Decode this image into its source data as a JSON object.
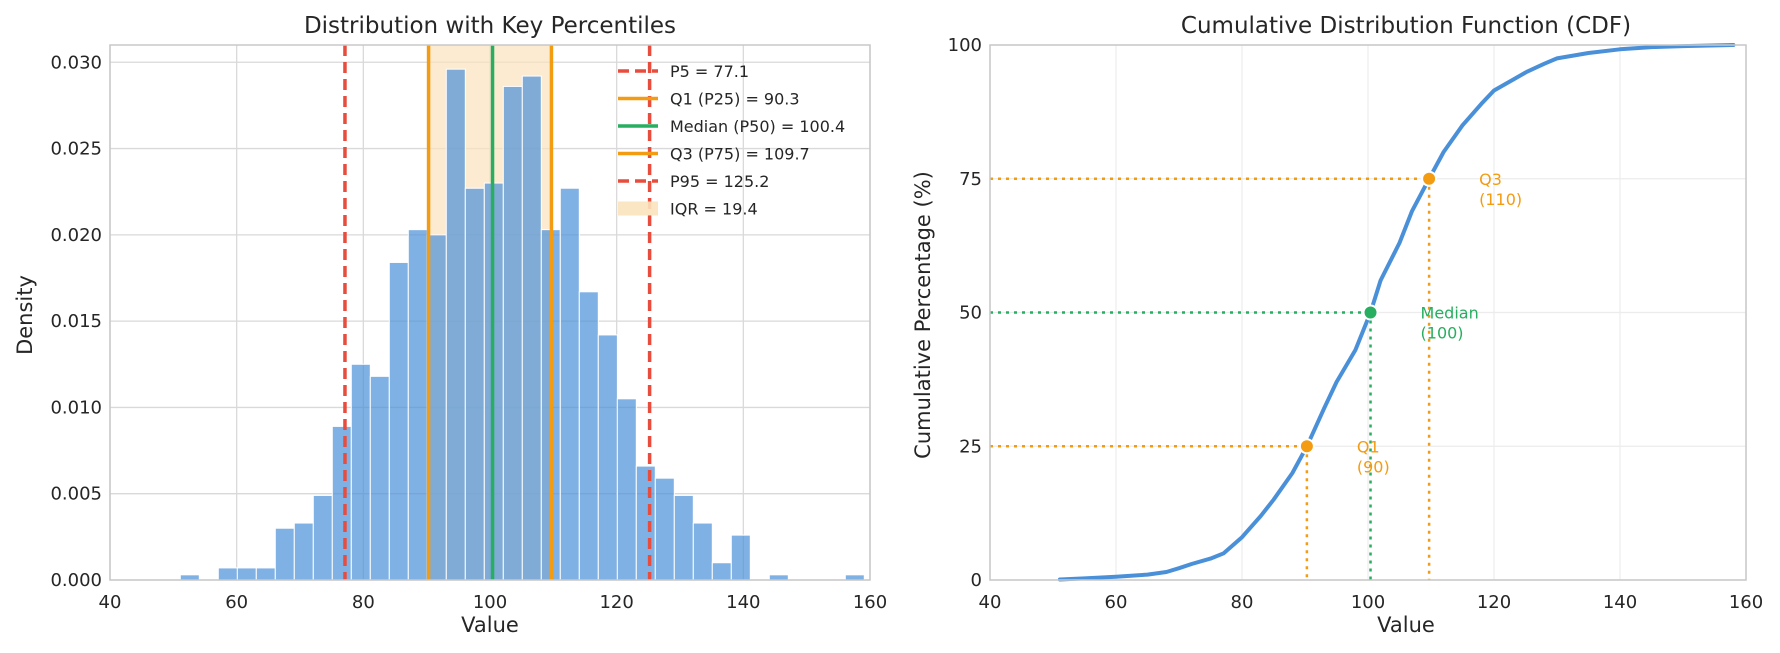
{
  "colors": {
    "histogram": "#4a90d9",
    "red": "#e74c3c",
    "orange": "#f39c12",
    "green": "#27ae60",
    "iqr_fill": "#fbe3bd",
    "cdf_line": "#4a90d9",
    "grid": "#d9d9d9",
    "axes": "#c8c8c8",
    "text": "#262626"
  },
  "chart_data": [
    {
      "type": "bar",
      "title": "Distribution with Key Percentiles",
      "xlabel": "Value",
      "ylabel": "Density",
      "xlim": [
        40,
        160
      ],
      "ylim": [
        0,
        0.031
      ],
      "xticks": [
        40,
        60,
        80,
        100,
        120,
        140,
        160
      ],
      "xtick_labels": [
        "40",
        "60",
        "80",
        "100",
        "120",
        "140",
        "160"
      ],
      "yticks": [
        0,
        0.005,
        0.01,
        0.015,
        0.02,
        0.025,
        0.03
      ],
      "ytick_labels": [
        "0.000",
        "0.005",
        "0.010",
        "0.015",
        "0.020",
        "0.025",
        "0.030"
      ],
      "grid": true,
      "legend_position": "top-right",
      "bin_edges": [
        51.1,
        54.1,
        57.1,
        60.1,
        63.1,
        66.1,
        69.1,
        72.1,
        75.1,
        78.1,
        81.1,
        84.1,
        87.1,
        90.1,
        93.1,
        96.1,
        99.1,
        102.1,
        105.1,
        108.1,
        111.1,
        114.1,
        117.1,
        120.1,
        123.1,
        126.1,
        129.1,
        132.1,
        135.1,
        138.1,
        141.1,
        144.1,
        147.1,
        150.1,
        153.1,
        156.1,
        159.1
      ],
      "densities": [
        0.0003,
        0,
        0.0007,
        0.0007,
        0.0007,
        0.003,
        0.0033,
        0.0049,
        0.0089,
        0.0125,
        0.0118,
        0.0184,
        0.0203,
        0.02,
        0.0296,
        0.0227,
        0.023,
        0.0286,
        0.0292,
        0.0203,
        0.0227,
        0.0167,
        0.0142,
        0.0105,
        0.0066,
        0.0059,
        0.0049,
        0.0033,
        0.001,
        0.0026,
        0,
        0.0003,
        0,
        0,
        0,
        0.0003
      ],
      "percentiles": [
        {
          "label": "P5 = 77.1",
          "value": 77.1,
          "color": "#e74c3c",
          "style": "dashed"
        },
        {
          "label": "Q1 (P25) = 90.3",
          "value": 90.3,
          "color": "#f39c12",
          "style": "solid"
        },
        {
          "label": "Median (P50) = 100.4",
          "value": 100.4,
          "color": "#27ae60",
          "style": "solid"
        },
        {
          "label": "Q3 (P75) = 109.7",
          "value": 109.7,
          "color": "#f39c12",
          "style": "solid"
        },
        {
          "label": "P95 = 125.2",
          "value": 125.2,
          "color": "#e74c3c",
          "style": "dashed"
        }
      ],
      "iqr": {
        "label": "IQR = 19.4",
        "from": 90.3,
        "to": 109.7
      }
    },
    {
      "type": "line",
      "title": "Cumulative Distribution Function (CDF)",
      "xlabel": "Value",
      "ylabel": "Cumulative Percentage (%)",
      "xlim": [
        40,
        160
      ],
      "ylim": [
        0,
        100
      ],
      "xticks": [
        40,
        60,
        80,
        100,
        120,
        140,
        160
      ],
      "xtick_labels": [
        "40",
        "60",
        "80",
        "100",
        "120",
        "140",
        "160"
      ],
      "yticks": [
        0,
        25,
        50,
        75,
        100
      ],
      "ytick_labels": [
        "0",
        "25",
        "50",
        "75",
        "100"
      ],
      "grid": true,
      "x": [
        51.1,
        55,
        60,
        65,
        68,
        70,
        72,
        75,
        77.1,
        80,
        83,
        85,
        88,
        90.3,
        93,
        95,
        98,
        100.4,
        102,
        105,
        107,
        109.7,
        112,
        115,
        118,
        120,
        123,
        125.2,
        128,
        130,
        135,
        140,
        145,
        150,
        158
      ],
      "y": [
        0.1,
        0.3,
        0.6,
        1,
        1.5,
        2.2,
        3,
        4,
        5,
        8,
        12,
        15,
        20,
        25,
        32,
        37,
        43,
        50,
        56,
        63,
        69,
        75,
        80,
        85,
        89,
        91.5,
        93.5,
        95,
        96.5,
        97.5,
        98.5,
        99.2,
        99.6,
        99.8,
        100
      ],
      "points": [
        {
          "name": "Q1",
          "label_line1": "Q1",
          "label_line2": "(90)",
          "x": 90.3,
          "y": 25,
          "color": "#f39c12"
        },
        {
          "name": "Median",
          "label_line1": "Median",
          "label_line2": "(100)",
          "x": 100.4,
          "y": 50,
          "color": "#27ae60"
        },
        {
          "name": "Q3",
          "label_line1": "Q3",
          "label_line2": "(110)",
          "x": 109.7,
          "y": 75,
          "color": "#f39c12"
        }
      ]
    }
  ]
}
